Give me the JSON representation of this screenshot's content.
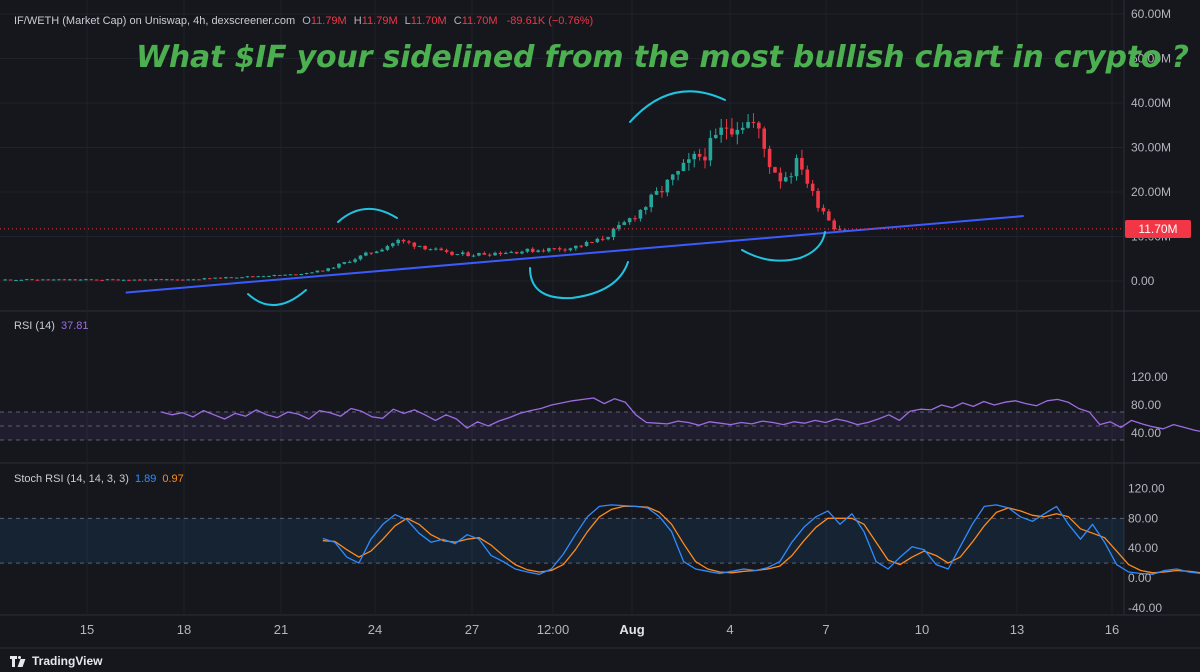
{
  "header": {
    "symbol": "IF/WETH (Market Cap) on Uniswap, 4h, dexscreener.com",
    "ohlc": [
      {
        "label": "O",
        "value": "11.79M"
      },
      {
        "label": "H",
        "value": "11.79M"
      },
      {
        "label": "L",
        "value": "11.70M"
      },
      {
        "label": "C",
        "value": "11.70M"
      }
    ],
    "change": "-89.61K (−0.76%)"
  },
  "headline": "What $IF your sidelined from the most bullish chart in crypto ?",
  "price_tag": "11.70M",
  "rsi_legend": {
    "label": "RSI (14)",
    "value": "37.81"
  },
  "stoch_legend": {
    "label": "Stoch RSI (14, 14, 3, 3)",
    "k_value": "1.89",
    "d_value": "0.97"
  },
  "brand": {
    "name": "TradingView",
    "icon": "tradingview-logo-icon"
  },
  "colors": {
    "background": "#15171d",
    "up": "#26a69a",
    "down": "#f23645",
    "headline": "#4caf50",
    "trendline": "#3b5bff",
    "annotation": "#22c3e0",
    "rsi": "#9c6ce0",
    "stoch_k": "#2f8cff",
    "stoch_d": "#ff8a1c"
  },
  "chart_data": [
    {
      "type": "candlestick",
      "title": "IF/WETH (Market Cap) on Uniswap, 4h, dexscreener.com",
      "x_ticks": [
        "15",
        "18",
        "21",
        "24",
        "27",
        "12:00",
        "Aug",
        "4",
        "7",
        "10",
        "13",
        "16"
      ],
      "y_ticks": [
        "0.00",
        "10.00M",
        "20.00M",
        "30.00M",
        "40.00M",
        "50.00M",
        "60.00M"
      ],
      "ylim": [
        -6,
        60
      ],
      "unit": "M",
      "last_price": 11.7,
      "trendline": {
        "start": [
          1.2,
          -2.6
        ],
        "end": [
          29.0,
          14.6
        ]
      },
      "anchors_day_close": [
        [
          0,
          0.3
        ],
        [
          3.0,
          0.3
        ],
        [
          5.0,
          1.0
        ],
        [
          6.5,
          1.5
        ],
        [
          7.4,
          2.5
        ],
        [
          8.1,
          4.5
        ],
        [
          9.0,
          7.0
        ],
        [
          9.6,
          9.0
        ],
        [
          10.3,
          8.0
        ],
        [
          11.2,
          6.0
        ],
        [
          12.0,
          6.0
        ],
        [
          13.0,
          6.5
        ],
        [
          14.0,
          7.0
        ],
        [
          15.0,
          7.5
        ],
        [
          15.8,
          9.0
        ],
        [
          16.5,
          12.0
        ],
        [
          17.3,
          17.0
        ],
        [
          18.0,
          22.0
        ],
        [
          18.6,
          26.0
        ],
        [
          19.3,
          30.0
        ],
        [
          19.8,
          35.0
        ],
        [
          20.3,
          36.0
        ],
        [
          20.7,
          35.0
        ],
        [
          21.1,
          27.0
        ],
        [
          21.5,
          23.0
        ],
        [
          21.8,
          25.0
        ],
        [
          22.1,
          27.0
        ],
        [
          22.4,
          20.0
        ],
        [
          22.6,
          18.0
        ],
        [
          22.9,
          15.0
        ],
        [
          23.1,
          12.5
        ],
        [
          23.3,
          11.8
        ],
        [
          23.6,
          11.7
        ]
      ],
      "last_day": 23.6,
      "day_offset": 12.0
    },
    {
      "type": "line",
      "title": "RSI (14)",
      "y_ticks": [
        "40.00",
        "80.00",
        "120.00"
      ],
      "ylim": [
        20,
        150
      ],
      "bands": [
        30,
        50,
        70
      ],
      "series": [
        {
          "name": "RSI (14)",
          "x_start": -9.7,
          "x_end": 23.6,
          "values": [
            70,
            66,
            69,
            63,
            72,
            66,
            60,
            68,
            64,
            73,
            66,
            62,
            70,
            67,
            60,
            72,
            69,
            64,
            75,
            71,
            63,
            61,
            74,
            68,
            73,
            66,
            58,
            66,
            60,
            47,
            56,
            50,
            57,
            62,
            68,
            72,
            75,
            80,
            83,
            86,
            88,
            90,
            82,
            89,
            84,
            66,
            55,
            54,
            53,
            57,
            55,
            51,
            56,
            54,
            52,
            55,
            53,
            57,
            55,
            52,
            56,
            54,
            58,
            55,
            60,
            57,
            52,
            55,
            60,
            66,
            58,
            71,
            74,
            73,
            80,
            76,
            83,
            78,
            85,
            80,
            84,
            86,
            82,
            79,
            86,
            88,
            84,
            75,
            70,
            52,
            56,
            48,
            58,
            53,
            49,
            46,
            52,
            48,
            44,
            41,
            38,
            38,
            37.81
          ]
        }
      ]
    },
    {
      "type": "line",
      "title": "Stoch RSI (14, 14, 3, 3)",
      "y_ticks": [
        "-40.00",
        "0.00",
        "40.00",
        "80.00",
        "120.00"
      ],
      "ylim": [
        -50,
        130
      ],
      "bands": [
        20,
        80
      ],
      "series": [
        {
          "name": "K",
          "x_start": -4.7,
          "x_end": 23.6,
          "values": [
            53,
            48,
            28,
            20,
            52,
            72,
            85,
            78,
            60,
            48,
            52,
            46,
            58,
            52,
            30,
            22,
            12,
            8,
            5,
            12,
            32,
            58,
            82,
            96,
            98,
            97,
            96,
            94,
            82,
            62,
            22,
            12,
            9,
            6,
            9,
            12,
            10,
            14,
            22,
            48,
            68,
            82,
            90,
            72,
            86,
            62,
            22,
            12,
            28,
            42,
            38,
            18,
            12,
            42,
            72,
            96,
            98,
            94,
            82,
            76,
            86,
            96,
            72,
            52,
            72,
            48,
            18,
            8,
            6,
            5,
            10,
            12,
            8,
            6,
            3,
            2,
            1.89
          ]
        },
        {
          "name": "D",
          "x_start": -4.7,
          "x_end": 23.6,
          "values": [
            50,
            49,
            38,
            28,
            36,
            52,
            70,
            80,
            72,
            58,
            50,
            48,
            52,
            54,
            44,
            30,
            18,
            11,
            8,
            10,
            18,
            38,
            62,
            82,
            92,
            96,
            96,
            95,
            88,
            72,
            46,
            22,
            12,
            8,
            7,
            9,
            10,
            12,
            16,
            30,
            50,
            68,
            80,
            80,
            80,
            72,
            48,
            24,
            18,
            28,
            36,
            30,
            20,
            28,
            48,
            70,
            88,
            94,
            90,
            84,
            82,
            86,
            82,
            66,
            60,
            54,
            36,
            18,
            10,
            7,
            8,
            10,
            9,
            7,
            5,
            3,
            0.97
          ]
        }
      ]
    }
  ]
}
